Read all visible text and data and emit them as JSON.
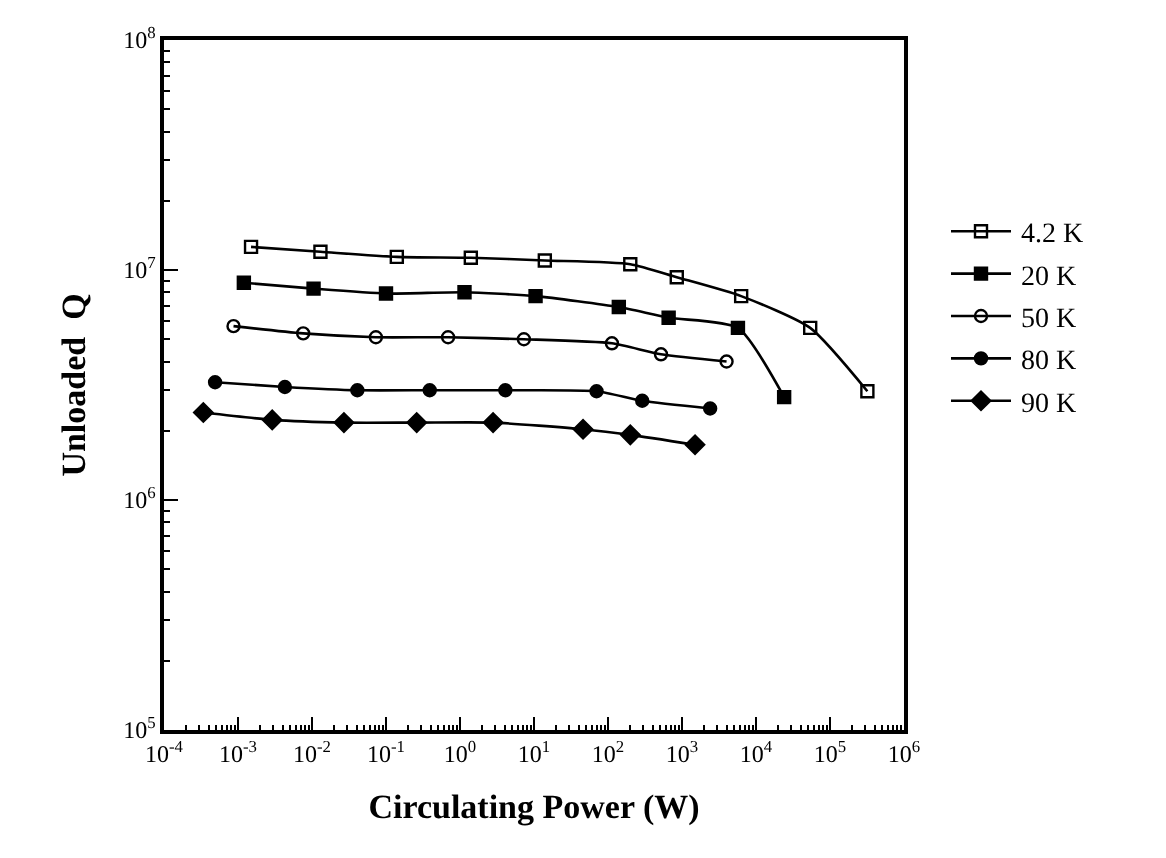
{
  "chart_data": {
    "type": "line",
    "xlabel": "Circulating Power (W)",
    "ylabel": "Unloaded  Q",
    "log": "xy",
    "grid": false,
    "legend": "right",
    "line_style": "solid",
    "xlim": [
      0.0001,
      1000000
    ],
    "ylim": [
      100000,
      100000000
    ],
    "xticks": [
      {
        "value": 0.0001,
        "label": "10$^{-4}$"
      },
      {
        "value": 0.001,
        "label": "10$^{-3}$"
      },
      {
        "value": 0.01,
        "label": "10$^{-2}$"
      },
      {
        "value": 0.1,
        "label": "10$^{-1}$"
      },
      {
        "value": 1,
        "label": "10$^{0}$"
      },
      {
        "value": 10,
        "label": "10$^{1}$"
      },
      {
        "value": 100,
        "label": "10$^{2}$"
      },
      {
        "value": 1000,
        "label": "10$^{3}$"
      },
      {
        "value": 10000,
        "label": "10$^{4}$"
      },
      {
        "value": 100000,
        "label": "10$^{5}$"
      },
      {
        "value": 1000000,
        "label": "10$^{6}$"
      }
    ],
    "yticks": [
      {
        "value": 100000,
        "label": "10$^{5}$"
      },
      {
        "value": 1000000,
        "label": "10$^{6}$"
      },
      {
        "value": 10000000,
        "label": "10$^{7}$"
      },
      {
        "value": 100000000,
        "label": "10$^{8}$"
      }
    ],
    "series": [
      {
        "name": "4.2 K",
        "color": "#000000",
        "marker": "square-open",
        "x": [
          0.0015,
          0.013,
          0.14,
          1.4,
          14,
          200,
          850,
          6300,
          54000,
          320000
        ],
        "values": [
          12600000,
          12000000,
          11400000,
          11300000,
          11000000,
          10600000,
          9300000,
          7700000,
          5600000,
          2970000
        ]
      },
      {
        "name": "20 K",
        "color": "#000000",
        "marker": "square",
        "x": [
          0.0012,
          0.0105,
          0.1,
          1.15,
          10.5,
          140,
          660,
          5700,
          24000
        ],
        "values": [
          8800000,
          8300000,
          7900000,
          8000000,
          7700000,
          6900000,
          6200000,
          5600000,
          2800000
        ]
      },
      {
        "name": "50 K",
        "color": "#000000",
        "marker": "circle-open",
        "x": [
          0.00087,
          0.0076,
          0.073,
          0.69,
          7.3,
          113,
          520,
          4000
        ],
        "values": [
          5700000,
          5300000,
          5100000,
          5100000,
          5000000,
          4800000,
          4300000,
          4000000
        ]
      },
      {
        "name": "80 K",
        "color": "#000000",
        "marker": "circle",
        "x": [
          0.00049,
          0.0043,
          0.041,
          0.39,
          4.1,
          70,
          290,
          2400
        ],
        "values": [
          3250000,
          3100000,
          3000000,
          3000000,
          3000000,
          2970000,
          2700000,
          2500000
        ]
      },
      {
        "name": "90 K",
        "color": "#000000",
        "marker": "diamond",
        "x": [
          0.00034,
          0.0029,
          0.027,
          0.26,
          2.8,
          46,
          200,
          1500
        ],
        "values": [
          2400000,
          2230000,
          2170000,
          2170000,
          2170000,
          2030000,
          1920000,
          1740000
        ]
      }
    ]
  }
}
